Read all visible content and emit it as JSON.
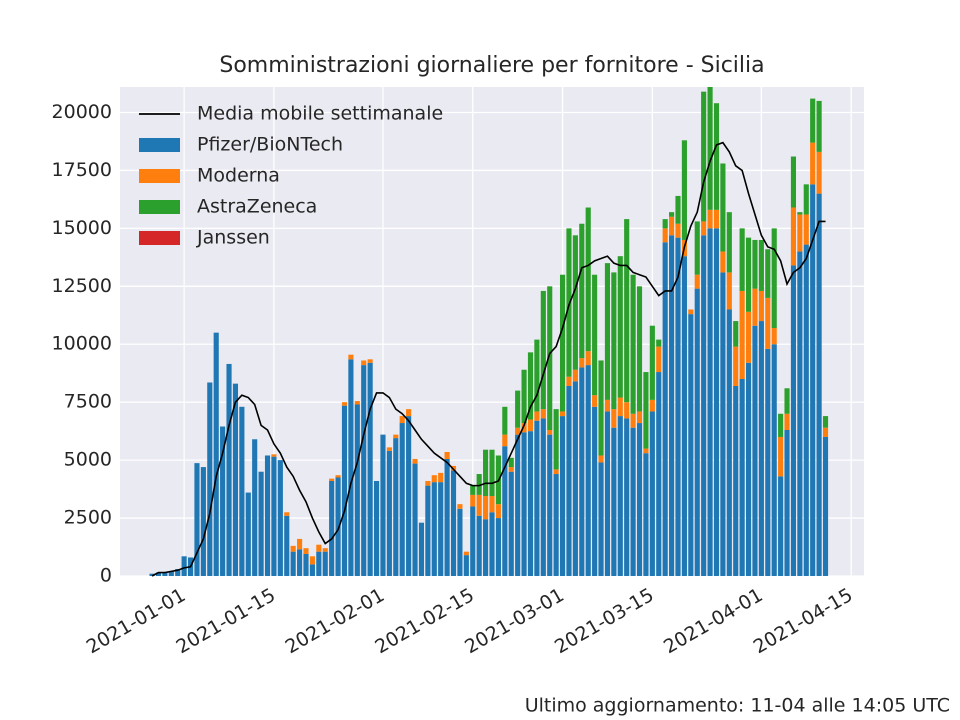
{
  "chart_data": {
    "type": "bar",
    "stacked": true,
    "title": "Somministrazioni giornaliere per fornitore - Sicilia",
    "footer": "Ultimo aggiornamento: 11-04 alle 14:05 UTC",
    "legend": "upper left",
    "grid": true,
    "x": [
      "2020-12-27",
      "2020-12-28",
      "2020-12-29",
      "2020-12-30",
      "2020-12-31",
      "2021-01-01",
      "2021-01-02",
      "2021-01-03",
      "2021-01-04",
      "2021-01-05",
      "2021-01-06",
      "2021-01-07",
      "2021-01-08",
      "2021-01-09",
      "2021-01-10",
      "2021-01-11",
      "2021-01-12",
      "2021-01-13",
      "2021-01-14",
      "2021-01-15",
      "2021-01-16",
      "2021-01-17",
      "2021-01-18",
      "2021-01-19",
      "2021-01-20",
      "2021-01-21",
      "2021-01-22",
      "2021-01-23",
      "2021-01-24",
      "2021-01-25",
      "2021-01-26",
      "2021-01-27",
      "2021-01-28",
      "2021-01-29",
      "2021-01-30",
      "2021-01-31",
      "2021-02-01",
      "2021-02-02",
      "2021-02-03",
      "2021-02-04",
      "2021-02-05",
      "2021-02-06",
      "2021-02-07",
      "2021-02-08",
      "2021-02-09",
      "2021-02-10",
      "2021-02-11",
      "2021-02-12",
      "2021-02-13",
      "2021-02-14",
      "2021-02-15",
      "2021-02-16",
      "2021-02-17",
      "2021-02-18",
      "2021-02-19",
      "2021-02-20",
      "2021-02-21",
      "2021-02-22",
      "2021-02-23",
      "2021-02-24",
      "2021-02-25",
      "2021-02-26",
      "2021-02-27",
      "2021-02-28",
      "2021-03-01",
      "2021-03-02",
      "2021-03-03",
      "2021-03-04",
      "2021-03-05",
      "2021-03-06",
      "2021-03-07",
      "2021-03-08",
      "2021-03-09",
      "2021-03-10",
      "2021-03-11",
      "2021-03-12",
      "2021-03-13",
      "2021-03-14",
      "2021-03-15",
      "2021-03-16",
      "2021-03-17",
      "2021-03-18",
      "2021-03-19",
      "2021-03-20",
      "2021-03-21",
      "2021-03-22",
      "2021-03-23",
      "2021-03-24",
      "2021-03-25",
      "2021-03-26",
      "2021-03-27",
      "2021-03-28",
      "2021-03-29",
      "2021-03-30",
      "2021-03-31",
      "2021-04-01",
      "2021-04-02",
      "2021-04-03",
      "2021-04-04",
      "2021-04-05",
      "2021-04-06",
      "2021-04-07",
      "2021-04-08",
      "2021-04-09",
      "2021-04-10",
      "2021-04-11"
    ],
    "xlim": [
      "2020-12-22",
      "2021-04-17"
    ],
    "xticks": [
      "2021-01-01",
      "2021-01-15",
      "2021-02-01",
      "2021-02-15",
      "2021-03-01",
      "2021-03-15",
      "2021-04-01",
      "2021-04-15"
    ],
    "ylim": [
      0,
      21100
    ],
    "yticks": [
      0,
      2500,
      5000,
      7500,
      10000,
      12500,
      15000,
      17500,
      20000
    ],
    "series": [
      {
        "name": "Media mobile settimanale",
        "type": "line",
        "color": "#000000",
        "values": [
          0,
          150,
          150,
          200,
          250,
          350,
          400,
          1000,
          1600,
          2700,
          4300,
          5300,
          6500,
          7500,
          7800,
          7700,
          7400,
          6500,
          6300,
          5700,
          5300,
          4700,
          4300,
          3700,
          3200,
          2500,
          1900,
          1400,
          1600,
          2000,
          2800,
          4000,
          4900,
          6100,
          7200,
          7900,
          7900,
          7700,
          7200,
          7000,
          6700,
          6300,
          5900,
          5600,
          5300,
          5100,
          4900,
          4600,
          4300,
          4000,
          3900,
          3900,
          4000,
          4000,
          4100,
          4700,
          5300,
          5900,
          6500,
          7300,
          7800,
          8700,
          9600,
          9900,
          10700,
          11700,
          12400,
          13300,
          13400,
          13600,
          13700,
          13800,
          13500,
          13400,
          13400,
          13100,
          13000,
          12900,
          12500,
          12100,
          12300,
          12300,
          12900,
          14200,
          15100,
          15700,
          17000,
          17900,
          18600,
          18700,
          18300,
          17700,
          17500,
          16500,
          15600,
          14700,
          14200,
          14100,
          13600,
          12600,
          13100,
          13300,
          13700,
          14500,
          15300,
          15300
        ]
      },
      {
        "name": "Pfizer/BioNTech",
        "color": "#1f77b4",
        "values": [
          100,
          150,
          150,
          200,
          300,
          850,
          800,
          4870,
          4700,
          8350,
          10500,
          6450,
          9150,
          8300,
          7300,
          3600,
          5900,
          4500,
          5200,
          5150,
          5000,
          2600,
          1050,
          1150,
          950,
          500,
          1050,
          1050,
          4100,
          4250,
          7350,
          9350,
          7400,
          9100,
          9200,
          4100,
          6100,
          5400,
          5950,
          6600,
          6900,
          4850,
          2300,
          3900,
          4050,
          4050,
          5050,
          4550,
          2900,
          900,
          3000,
          2600,
          2450,
          2750,
          2500,
          5600,
          4500,
          6100,
          6200,
          6250,
          6700,
          6800,
          6100,
          4400,
          6900,
          8200,
          8400,
          9000,
          9100,
          7300,
          4900,
          7100,
          6400,
          6900,
          6800,
          6400,
          6600,
          5300,
          7100,
          8800,
          14400,
          14700,
          14600,
          13800,
          11300,
          12400,
          14700,
          15000,
          15000,
          13100,
          11500,
          8200,
          8500,
          9200,
          10800,
          11000,
          9800,
          10000,
          4300,
          6300,
          13400,
          14000,
          14300,
          16900,
          16500,
          6000
        ]
      },
      {
        "name": "Moderna",
        "color": "#ff7f0e",
        "values": [
          0,
          0,
          0,
          0,
          0,
          0,
          0,
          0,
          0,
          0,
          0,
          0,
          0,
          0,
          0,
          0,
          0,
          0,
          0,
          100,
          0,
          150,
          250,
          450,
          250,
          350,
          300,
          150,
          100,
          100,
          150,
          200,
          150,
          200,
          150,
          0,
          0,
          150,
          150,
          300,
          300,
          200,
          0,
          200,
          300,
          400,
          300,
          200,
          200,
          150,
          500,
          900,
          1000,
          700,
          600,
          500,
          200,
          300,
          400,
          500,
          400,
          400,
          200,
          200,
          200,
          400,
          500,
          400,
          600,
          500,
          300,
          500,
          800,
          800,
          700,
          600,
          500,
          200,
          500,
          1100,
          600,
          800,
          600,
          700,
          200,
          600,
          600,
          800,
          800,
          900,
          1600,
          1700,
          3800,
          2200,
          1600,
          1300,
          2200,
          700,
          1700,
          700,
          2500,
          1600,
          1300,
          1800,
          1800,
          400
        ]
      },
      {
        "name": "AstraZeneca",
        "color": "#2ca02c",
        "values": [
          0,
          0,
          0,
          0,
          0,
          0,
          0,
          0,
          0,
          0,
          0,
          0,
          0,
          0,
          0,
          0,
          0,
          0,
          0,
          0,
          0,
          0,
          0,
          0,
          0,
          0,
          0,
          0,
          0,
          0,
          0,
          0,
          0,
          0,
          0,
          0,
          0,
          0,
          0,
          0,
          0,
          0,
          0,
          0,
          0,
          0,
          0,
          0,
          0,
          0,
          400,
          900,
          2000,
          2000,
          2100,
          1200,
          400,
          1600,
          2300,
          2900,
          3100,
          5100,
          6200,
          2600,
          5900,
          6400,
          5800,
          5800,
          6200,
          5200,
          4100,
          5900,
          5900,
          6100,
          7900,
          6000,
          5400,
          3300,
          3200,
          300,
          400,
          200,
          1200,
          4300,
          0,
          2300,
          5600,
          5300,
          4600,
          3800,
          2600,
          1100,
          2700,
          3200,
          2100,
          2200,
          2100,
          4300,
          1000,
          1100,
          2200,
          100,
          1300,
          1900,
          2200,
          500
        ]
      },
      {
        "name": "Janssen",
        "color": "#d62728",
        "values": [
          0,
          0,
          0,
          0,
          0,
          0,
          0,
          0,
          0,
          0,
          0,
          0,
          0,
          0,
          0,
          0,
          0,
          0,
          0,
          0,
          0,
          0,
          0,
          0,
          0,
          0,
          0,
          0,
          0,
          0,
          0,
          0,
          0,
          0,
          0,
          0,
          0,
          0,
          0,
          0,
          0,
          0,
          0,
          0,
          0,
          0,
          0,
          0,
          0,
          0,
          0,
          0,
          0,
          0,
          0,
          0,
          0,
          0,
          0,
          0,
          0,
          0,
          0,
          0,
          0,
          0,
          0,
          0,
          0,
          0,
          0,
          0,
          0,
          0,
          0,
          0,
          0,
          0,
          0,
          0,
          0,
          0,
          0,
          0,
          0,
          0,
          0,
          0,
          0,
          0,
          0,
          0,
          0,
          0,
          0,
          0,
          0,
          0,
          0,
          0,
          0,
          0,
          0,
          0,
          0,
          0
        ]
      }
    ]
  }
}
